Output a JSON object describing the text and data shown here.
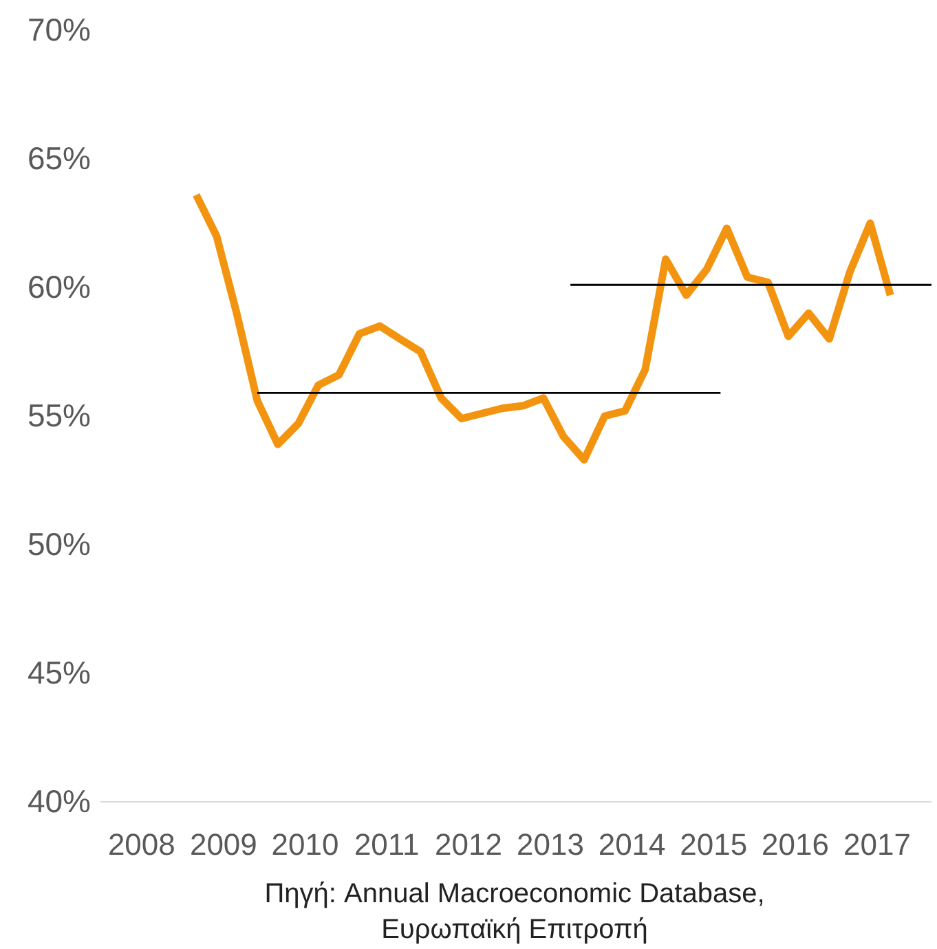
{
  "chart_data": {
    "type": "line",
    "x": [
      "2008-09",
      "2008-12",
      "2009-03",
      "2009-06",
      "2009-09",
      "2009-12",
      "2010-03",
      "2010-06",
      "2010-09",
      "2010-12",
      "2011-03",
      "2011-06",
      "2011-09",
      "2011-12",
      "2012-03",
      "2012-06",
      "2012-09",
      "2012-12",
      "2013-03",
      "2013-06",
      "2013-09",
      "2013-12",
      "2014-03",
      "2014-06",
      "2014-09",
      "2014-12",
      "2015-03",
      "2015-06",
      "2015-09",
      "2015-12",
      "2016-03",
      "2016-06",
      "2016-09",
      "2016-12",
      "2017-03"
    ],
    "series": [
      {
        "color": "#f29410",
        "values": [
          63.6,
          62.0,
          59.0,
          55.6,
          53.9,
          54.7,
          56.2,
          56.6,
          58.2,
          58.5,
          58.0,
          57.5,
          55.7,
          54.9,
          55.1,
          55.3,
          55.4,
          55.7,
          54.2,
          53.3,
          55.0,
          55.2,
          56.8,
          61.1,
          59.7,
          60.7,
          62.3,
          60.4,
          60.2,
          58.1,
          59.0,
          58.0,
          60.6,
          62.5,
          59.7
        ]
      },
      {
        "type": "line",
        "color": "#000000",
        "x": [
          "2009-06",
          "2015-02"
        ],
        "values": [
          55.9,
          55.9
        ]
      },
      {
        "type": "line",
        "color": "#000000",
        "x": [
          "2013-04",
          "2017-09"
        ],
        "values": [
          60.1,
          60.1
        ]
      }
    ],
    "xlim": [
      "2007-07",
      "2017-09"
    ],
    "xticks": [
      "2008",
      "2009",
      "2010",
      "2011",
      "2012",
      "2013",
      "2014",
      "2015",
      "2016",
      "2017"
    ],
    "ylim": [
      40,
      70
    ],
    "yticks": [
      {
        "value": 40,
        "label": "40%"
      },
      {
        "value": 45,
        "label": "45%"
      },
      {
        "value": 50,
        "label": "50%"
      },
      {
        "value": 55,
        "label": "55%"
      },
      {
        "value": 60,
        "label": "60%"
      },
      {
        "value": 65,
        "label": "65%"
      },
      {
        "value": 70,
        "label": "70%"
      }
    ],
    "annotations": [
      "Πηγή: Annual Macroeconomic Database, Ευρωπαϊκή Επιτροπή"
    ]
  }
}
